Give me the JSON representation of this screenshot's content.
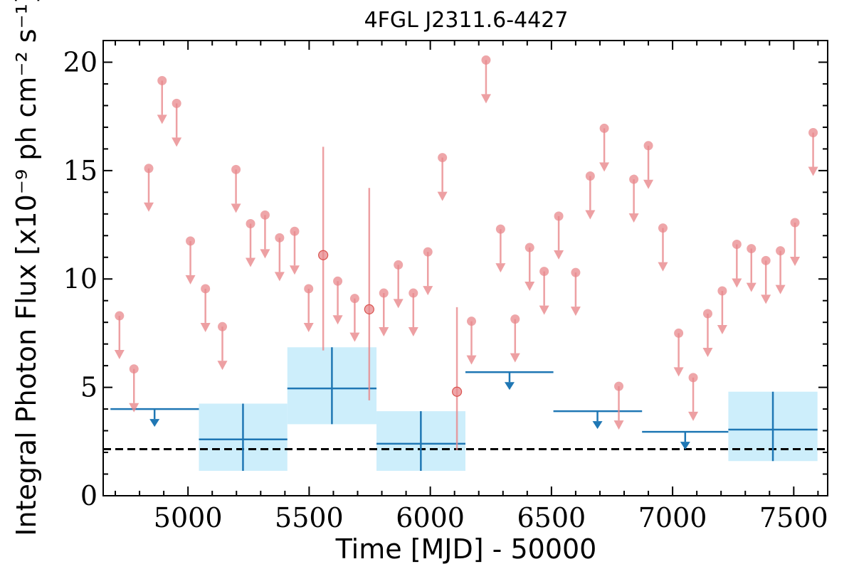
{
  "chart_data": {
    "type": "scatter",
    "title": "4FGL J2311.6-4427",
    "xlabel": "Time [MJD] - 50000",
    "ylabel": "Integral Photon Flux [x10⁻⁹ ph cm⁻² s⁻¹]",
    "xlim": [
      4650,
      7640
    ],
    "ylim": [
      0,
      21
    ],
    "xticks": [
      5000,
      5500,
      6000,
      6500,
      7000,
      7500
    ],
    "xtick_labels": [
      "5000",
      "5500",
      "6000",
      "6500",
      "7000",
      "7500"
    ],
    "yticks": [
      0,
      5,
      10,
      15,
      20
    ],
    "ytick_labels": [
      "0",
      "5",
      "10",
      "15",
      "20"
    ],
    "grid": false,
    "colors": {
      "short_bins": "#e8888c",
      "long_bins": "#1f77b4",
      "long_bin_band": "#cdeefb",
      "reference_line": "#000000"
    },
    "reference_line": {
      "y": 2.15,
      "style": "dashed"
    },
    "short_bins_upper_limits": [
      {
        "x": 4717,
        "y": 8.3
      },
      {
        "x": 4777,
        "y": 5.85
      },
      {
        "x": 4838,
        "y": 15.1
      },
      {
        "x": 4893,
        "y": 19.15
      },
      {
        "x": 4953,
        "y": 18.1
      },
      {
        "x": 5010,
        "y": 11.75
      },
      {
        "x": 5072,
        "y": 9.55
      },
      {
        "x": 5142,
        "y": 7.8
      },
      {
        "x": 5198,
        "y": 15.05
      },
      {
        "x": 5258,
        "y": 12.55
      },
      {
        "x": 5318,
        "y": 12.95
      },
      {
        "x": 5378,
        "y": 11.9
      },
      {
        "x": 5440,
        "y": 12.2
      },
      {
        "x": 5498,
        "y": 9.55
      },
      {
        "x": 5618,
        "y": 9.9
      },
      {
        "x": 5688,
        "y": 9.1
      },
      {
        "x": 5808,
        "y": 9.35
      },
      {
        "x": 5868,
        "y": 10.65
      },
      {
        "x": 5930,
        "y": 9.35
      },
      {
        "x": 5990,
        "y": 11.25
      },
      {
        "x": 6050,
        "y": 15.6
      },
      {
        "x": 6170,
        "y": 8.05
      },
      {
        "x": 6230,
        "y": 20.1
      },
      {
        "x": 6290,
        "y": 12.3
      },
      {
        "x": 6350,
        "y": 8.15
      },
      {
        "x": 6410,
        "y": 11.45
      },
      {
        "x": 6470,
        "y": 10.35
      },
      {
        "x": 6530,
        "y": 12.9
      },
      {
        "x": 6600,
        "y": 10.3
      },
      {
        "x": 6660,
        "y": 14.75
      },
      {
        "x": 6718,
        "y": 16.95
      },
      {
        "x": 6778,
        "y": 5.05
      },
      {
        "x": 6840,
        "y": 14.6
      },
      {
        "x": 6900,
        "y": 16.15
      },
      {
        "x": 6960,
        "y": 12.35
      },
      {
        "x": 7025,
        "y": 7.5
      },
      {
        "x": 7085,
        "y": 5.45
      },
      {
        "x": 7145,
        "y": 8.4
      },
      {
        "x": 7205,
        "y": 9.45
      },
      {
        "x": 7265,
        "y": 11.6
      },
      {
        "x": 7325,
        "y": 11.4
      },
      {
        "x": 7385,
        "y": 10.85
      },
      {
        "x": 7445,
        "y": 11.3
      },
      {
        "x": 7505,
        "y": 12.6
      },
      {
        "x": 7580,
        "y": 16.75
      }
    ],
    "short_bins_detections": [
      {
        "x": 5558,
        "y": 11.1,
        "yerr_low": 6.7,
        "yerr_high": 16.1
      },
      {
        "x": 5748,
        "y": 8.6,
        "yerr_low": 4.4,
        "yerr_high": 14.2
      },
      {
        "x": 6110,
        "y": 4.8,
        "yerr_low": 2.1,
        "yerr_high": 8.7
      }
    ],
    "long_bins_upper_limits": [
      {
        "x_start": 4680,
        "x_end": 5045,
        "x": 4862,
        "y": 4.0
      },
      {
        "x_start": 6145,
        "x_end": 6508,
        "x": 6327,
        "y": 5.7
      },
      {
        "x_start": 6508,
        "x_end": 6874,
        "x": 6690,
        "y": 3.9
      },
      {
        "x_start": 6874,
        "x_end": 7230,
        "x": 7052,
        "y": 2.95
      }
    ],
    "long_bins_detections": [
      {
        "x_start": 5045,
        "x_end": 5410,
        "x": 5227,
        "y": 2.6,
        "y_low": 1.15,
        "y_high": 4.25
      },
      {
        "x_start": 5410,
        "x_end": 5778,
        "x": 5594,
        "y": 4.95,
        "y_low": 3.3,
        "y_high": 6.85
      },
      {
        "x_start": 5778,
        "x_end": 6145,
        "x": 5961,
        "y": 2.4,
        "y_low": 1.15,
        "y_high": 3.9
      },
      {
        "x_start": 7230,
        "x_end": 7598,
        "x": 7414,
        "y": 3.05,
        "y_low": 1.6,
        "y_high": 4.8
      }
    ]
  }
}
